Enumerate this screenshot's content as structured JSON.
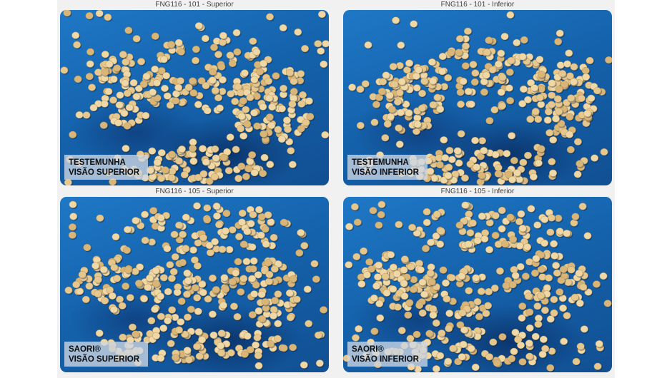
{
  "panels": [
    {
      "title": "FNG116 - 101 - Superior",
      "caption_line1": "TESTEMUNHA",
      "caption_line2": "VISÃO SUPERIOR",
      "seed": 11
    },
    {
      "title": "FNG116 - 101 - Inferior",
      "caption_line1": "TESTEMUNHA",
      "caption_line2": "VISÃO INFERIOR",
      "seed": 23
    },
    {
      "title": "FNG116 - 105 - Superior",
      "caption_line1": "SAORI®",
      "caption_line2": "VISÃO SUPERIOR",
      "seed": 37
    },
    {
      "title": "FNG116 - 105 - Inferior",
      "caption_line1": "SAORI®",
      "caption_line2": "VISÃO INFERIOR",
      "seed": 51
    }
  ],
  "colors": {
    "background": "#ffffff",
    "sheet": "#f1f1f1",
    "tray_blue": "#1563ad",
    "seed_fill": "#e6c88f",
    "caption_bg": "#cdd7e4"
  },
  "icons": [
    "soybean-seed-icon"
  ]
}
